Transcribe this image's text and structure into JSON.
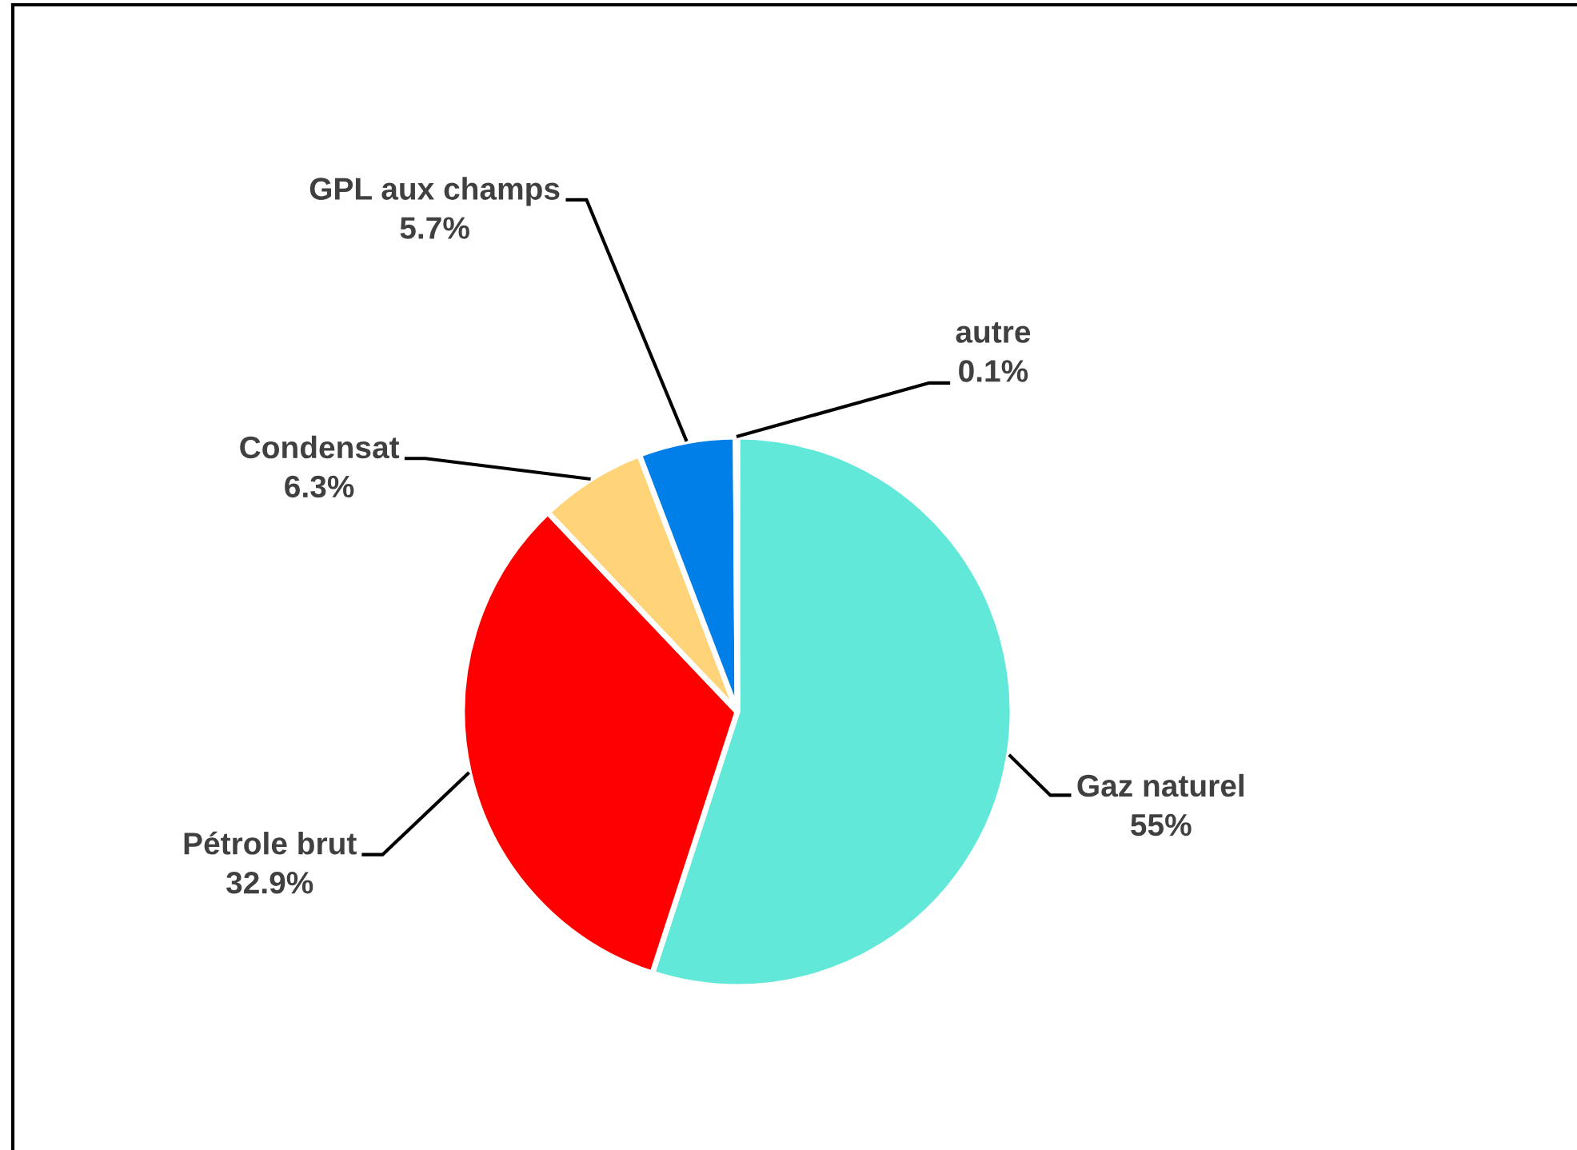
{
  "chart_data": {
    "type": "pie",
    "categories": [
      "Gaz naturel",
      "Pétrole brut",
      "Condensat",
      "GPL aux champs",
      "autre"
    ],
    "values": [
      55,
      32.9,
      6.3,
      5.7,
      0.1
    ],
    "colors": [
      "#62e8d8",
      "#ff0000",
      "#ffd478",
      "#007fe8",
      "#bfbfbf"
    ],
    "value_labels": [
      "55%",
      "32.9%",
      "6.3%",
      "5.7%",
      "0.1%"
    ]
  }
}
